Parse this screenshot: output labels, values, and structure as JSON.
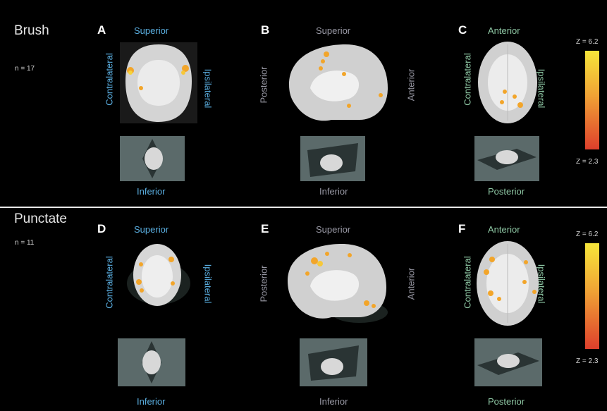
{
  "groups": [
    {
      "title": "Brush",
      "n": "n = 17",
      "scale_max": "Z = 6.2",
      "scale_min": "Z = 2.3",
      "panels": [
        {
          "letter": "A",
          "top": "Superior",
          "bottom": "Inferior",
          "left": "Contralateral",
          "right": "Ipsilateral"
        },
        {
          "letter": "B",
          "top": "Superior",
          "bottom": "Inferior",
          "left": "Posterior",
          "right": "Anterior"
        },
        {
          "letter": "C",
          "top": "Anterior",
          "bottom": "Posterior",
          "left": "Contralateral",
          "right": "Ipsilateral"
        }
      ]
    },
    {
      "title": "Punctate",
      "n": "n = 11",
      "scale_max": "Z = 6.2",
      "scale_min": "Z = 2.3",
      "panels": [
        {
          "letter": "D",
          "top": "Superior",
          "bottom": "Inferior",
          "left": "Contralateral",
          "right": "Ipsilateral"
        },
        {
          "letter": "E",
          "top": "Superior",
          "bottom": "Inferior",
          "left": "Posterior",
          "right": "Anterior"
        },
        {
          "letter": "F",
          "top": "Anterior",
          "bottom": "Posterior",
          "left": "Contralateral",
          "right": "Ipsilateral"
        }
      ]
    }
  ],
  "colors": {
    "background": "#000000",
    "label_blue": "#5aaee0",
    "label_gray": "#9a9aa6",
    "label_green": "#8ec7a4",
    "activation": "#f2a52a",
    "scale_top": "#f6e63a",
    "scale_bottom": "#de3f2c"
  }
}
